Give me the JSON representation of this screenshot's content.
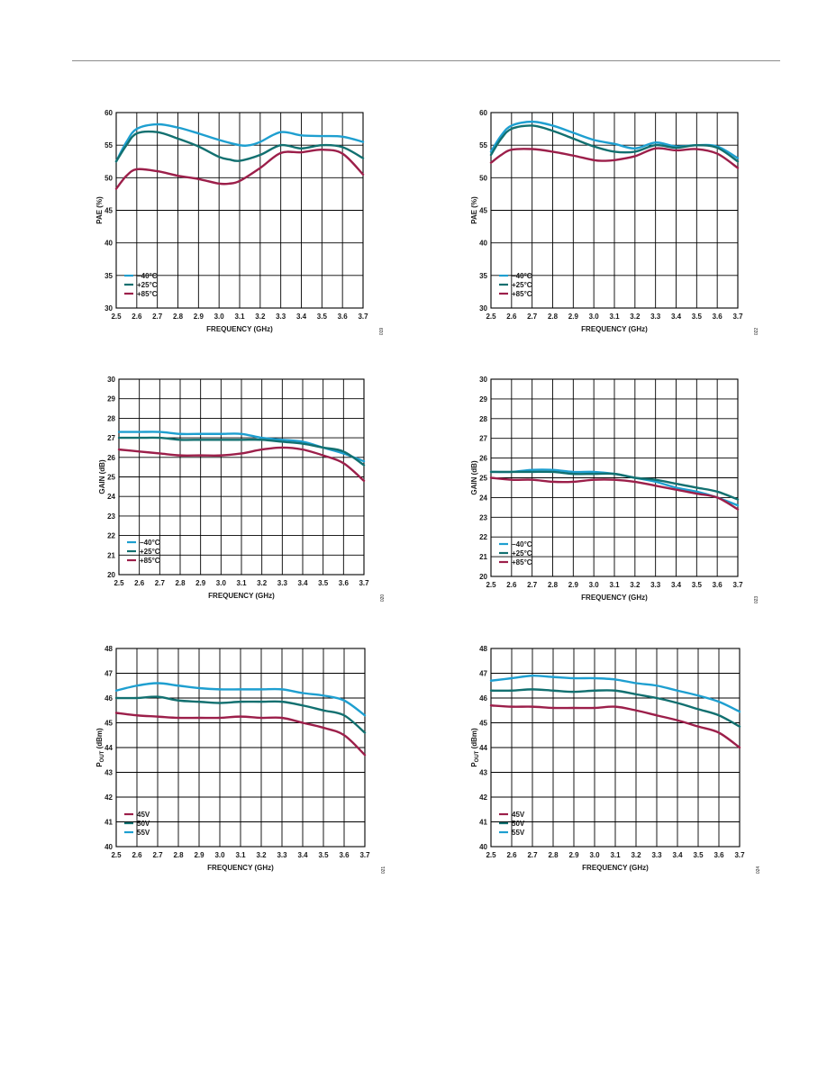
{
  "chart_data": [
    {
      "type": "line",
      "xlabel": "FREQUENCY (GHz)",
      "ylabel": "PAE (%)",
      "figure_id": "019",
      "xlim": [
        2.5,
        3.7
      ],
      "ylim": [
        30,
        60
      ],
      "x_ticks": [
        "2.5",
        "2.6",
        "2.7",
        "2.8",
        "2.9",
        "3.0",
        "3.1",
        "3.2",
        "3.3",
        "3.4",
        "3.5",
        "3.6",
        "3.7"
      ],
      "y_ticks": [
        "30",
        "35",
        "40",
        "45",
        "50",
        "55",
        "60"
      ],
      "legend_position": "bottom-left",
      "series": [
        {
          "name": "−40°C",
          "color": "#1e9fd0",
          "x": [
            2.5,
            2.55,
            2.6,
            2.7,
            2.8,
            2.9,
            3.0,
            3.1,
            3.15,
            3.2,
            3.3,
            3.4,
            3.5,
            3.6,
            3.7
          ],
          "y": [
            52.5,
            55.5,
            57.5,
            58.2,
            57.7,
            56.8,
            55.8,
            55.0,
            55.0,
            55.5,
            57.0,
            56.5,
            56.4,
            56.3,
            55.5
          ]
        },
        {
          "name": "+25°C",
          "color": "#127070",
          "x": [
            2.5,
            2.55,
            2.6,
            2.7,
            2.8,
            2.9,
            3.0,
            3.05,
            3.1,
            3.2,
            3.3,
            3.4,
            3.5,
            3.6,
            3.7
          ],
          "y": [
            52.5,
            55.0,
            56.8,
            57.0,
            56.0,
            54.8,
            53.2,
            52.8,
            52.6,
            53.5,
            55.0,
            54.5,
            55.0,
            54.7,
            53.0
          ]
        },
        {
          "name": "+85°C",
          "color": "#9c1f4a",
          "x": [
            2.5,
            2.55,
            2.6,
            2.7,
            2.8,
            2.9,
            3.0,
            3.05,
            3.1,
            3.2,
            3.3,
            3.4,
            3.5,
            3.6,
            3.7
          ],
          "y": [
            48.3,
            50.3,
            51.3,
            51.0,
            50.3,
            49.8,
            49.1,
            49.1,
            49.5,
            51.5,
            53.8,
            53.9,
            54.3,
            53.7,
            50.5
          ]
        }
      ]
    },
    {
      "type": "line",
      "xlabel": "FREQUENCY (GHz)",
      "ylabel": "PAE (%)",
      "figure_id": "022",
      "xlim": [
        2.5,
        3.7
      ],
      "ylim": [
        30,
        60
      ],
      "x_ticks": [
        "2.5",
        "2.6",
        "2.7",
        "2.8",
        "2.9",
        "3.0",
        "3.1",
        "3.2",
        "3.3",
        "3.4",
        "3.5",
        "3.6",
        "3.7"
      ],
      "y_ticks": [
        "30",
        "35",
        "40",
        "45",
        "50",
        "55",
        "60"
      ],
      "legend_position": "bottom-left",
      "series": [
        {
          "name": "−40°C",
          "color": "#1e9fd0",
          "x": [
            2.5,
            2.55,
            2.6,
            2.7,
            2.8,
            2.9,
            3.0,
            3.1,
            3.2,
            3.3,
            3.4,
            3.5,
            3.6,
            3.7
          ],
          "y": [
            54.0,
            56.5,
            58.0,
            58.6,
            58.0,
            56.9,
            55.8,
            55.2,
            54.5,
            55.4,
            54.8,
            55.0,
            54.8,
            53.0
          ]
        },
        {
          "name": "+25°C",
          "color": "#127070",
          "x": [
            2.5,
            2.55,
            2.6,
            2.7,
            2.8,
            2.9,
            3.0,
            3.1,
            3.2,
            3.3,
            3.4,
            3.5,
            3.6,
            3.7
          ],
          "y": [
            53.5,
            56.0,
            57.5,
            58.0,
            57.2,
            56.0,
            54.8,
            54.0,
            54.0,
            55.0,
            54.6,
            55.0,
            54.6,
            52.5
          ]
        },
        {
          "name": "+85°C",
          "color": "#9c1f4a",
          "x": [
            2.5,
            2.55,
            2.6,
            2.7,
            2.8,
            2.9,
            3.0,
            3.05,
            3.1,
            3.2,
            3.3,
            3.4,
            3.5,
            3.6,
            3.7
          ],
          "y": [
            52.3,
            53.5,
            54.3,
            54.4,
            54.0,
            53.4,
            52.7,
            52.6,
            52.7,
            53.3,
            54.5,
            54.2,
            54.4,
            53.7,
            51.5
          ]
        }
      ]
    },
    {
      "type": "line",
      "xlabel": "FREQUENCY (GHz)",
      "ylabel": "GAIN (dB)",
      "figure_id": "020",
      "xlim": [
        2.5,
        3.7
      ],
      "ylim": [
        20,
        30
      ],
      "x_ticks": [
        "2.5",
        "2.6",
        "2.7",
        "2.8",
        "2.9",
        "3.0",
        "3.1",
        "3.2",
        "3.3",
        "3.4",
        "3.5",
        "3.6",
        "3.7"
      ],
      "y_ticks": [
        "20",
        "21",
        "22",
        "23",
        "24",
        "25",
        "26",
        "27",
        "28",
        "29",
        "30"
      ],
      "legend_position": "bottom-left",
      "series": [
        {
          "name": "−40°C",
          "color": "#1e9fd0",
          "x": [
            2.5,
            2.6,
            2.7,
            2.8,
            2.9,
            3.0,
            3.1,
            3.2,
            3.3,
            3.4,
            3.5,
            3.6,
            3.7
          ],
          "y": [
            27.3,
            27.3,
            27.3,
            27.2,
            27.2,
            27.2,
            27.2,
            27.0,
            26.9,
            26.8,
            26.5,
            26.2,
            25.8
          ]
        },
        {
          "name": "+25°C",
          "color": "#127070",
          "x": [
            2.5,
            2.6,
            2.7,
            2.8,
            2.9,
            3.0,
            3.1,
            3.2,
            3.3,
            3.4,
            3.5,
            3.6,
            3.7
          ],
          "y": [
            27.0,
            27.0,
            27.0,
            26.9,
            26.9,
            26.9,
            26.9,
            26.9,
            26.8,
            26.7,
            26.5,
            26.3,
            25.6
          ]
        },
        {
          "name": "+85°C",
          "color": "#9c1f4a",
          "x": [
            2.5,
            2.6,
            2.7,
            2.8,
            2.9,
            3.0,
            3.1,
            3.2,
            3.3,
            3.4,
            3.5,
            3.6,
            3.7
          ],
          "y": [
            26.4,
            26.3,
            26.2,
            26.1,
            26.1,
            26.1,
            26.2,
            26.4,
            26.5,
            26.4,
            26.1,
            25.7,
            24.8
          ]
        }
      ]
    },
    {
      "type": "line",
      "xlabel": "FREQUENCY (GHz)",
      "ylabel": "GAIN (dB)",
      "figure_id": "023",
      "xlim": [
        2.5,
        3.7
      ],
      "ylim": [
        20,
        30
      ],
      "x_ticks": [
        "2.5",
        "2.6",
        "2.7",
        "2.8",
        "2.9",
        "3.0",
        "3.1",
        "3.2",
        "3.3",
        "3.4",
        "3.5",
        "3.6",
        "3.7"
      ],
      "y_ticks": [
        "20",
        "21",
        "22",
        "23",
        "24",
        "25",
        "26",
        "27",
        "28",
        "29",
        "30"
      ],
      "legend_position": "bottom-left",
      "series": [
        {
          "name": "−40°C",
          "color": "#1e9fd0",
          "x": [
            2.5,
            2.6,
            2.7,
            2.8,
            2.9,
            3.0,
            3.1,
            3.2,
            3.3,
            3.4,
            3.5,
            3.6,
            3.7
          ],
          "y": [
            25.3,
            25.3,
            25.4,
            25.4,
            25.3,
            25.3,
            25.2,
            25.0,
            24.8,
            24.5,
            24.3,
            24.0,
            23.6
          ]
        },
        {
          "name": "+25°C",
          "color": "#127070",
          "x": [
            2.5,
            2.6,
            2.7,
            2.8,
            2.9,
            3.0,
            3.1,
            3.2,
            3.3,
            3.4,
            3.5,
            3.6,
            3.7
          ],
          "y": [
            25.3,
            25.3,
            25.3,
            25.3,
            25.2,
            25.2,
            25.2,
            25.0,
            24.9,
            24.7,
            24.5,
            24.3,
            23.9
          ]
        },
        {
          "name": "+85°C",
          "color": "#9c1f4a",
          "x": [
            2.5,
            2.6,
            2.7,
            2.8,
            2.9,
            3.0,
            3.1,
            3.2,
            3.3,
            3.4,
            3.5,
            3.6,
            3.7
          ],
          "y": [
            25.0,
            24.9,
            24.9,
            24.8,
            24.8,
            24.9,
            24.9,
            24.8,
            24.6,
            24.4,
            24.2,
            24.0,
            23.4
          ]
        }
      ]
    },
    {
      "type": "line",
      "xlabel": "FREQUENCY (GHz)",
      "ylabel_main": "P",
      "ylabel_sub": "OUT",
      "ylabel_unit": " (dBm)",
      "figure_id": "021",
      "xlim": [
        2.5,
        3.7
      ],
      "ylim": [
        40,
        48
      ],
      "x_ticks": [
        "2.5",
        "2.6",
        "2.7",
        "2.8",
        "2.9",
        "3.0",
        "3.1",
        "3.2",
        "3.3",
        "3.4",
        "3.5",
        "3.6",
        "3.7"
      ],
      "y_ticks": [
        "40",
        "41",
        "42",
        "43",
        "44",
        "45",
        "46",
        "47",
        "48"
      ],
      "legend_position": "bottom-left",
      "series": [
        {
          "name": "45V",
          "color": "#9c1f4a",
          "x": [
            2.5,
            2.6,
            2.7,
            2.8,
            2.9,
            3.0,
            3.1,
            3.2,
            3.3,
            3.4,
            3.5,
            3.6,
            3.7
          ],
          "y": [
            45.4,
            45.3,
            45.25,
            45.2,
            45.2,
            45.2,
            45.25,
            45.2,
            45.2,
            45.0,
            44.8,
            44.5,
            43.7
          ]
        },
        {
          "name": "50V",
          "color": "#127070",
          "x": [
            2.5,
            2.6,
            2.7,
            2.8,
            2.9,
            3.0,
            3.1,
            3.2,
            3.3,
            3.4,
            3.5,
            3.6,
            3.7
          ],
          "y": [
            46.0,
            46.0,
            46.05,
            45.9,
            45.85,
            45.8,
            45.85,
            45.85,
            45.85,
            45.7,
            45.5,
            45.3,
            44.6
          ]
        },
        {
          "name": "55V",
          "color": "#1e9fd0",
          "x": [
            2.5,
            2.6,
            2.7,
            2.8,
            2.9,
            3.0,
            3.1,
            3.2,
            3.3,
            3.4,
            3.5,
            3.6,
            3.7
          ],
          "y": [
            46.3,
            46.5,
            46.6,
            46.5,
            46.4,
            46.35,
            46.35,
            46.35,
            46.35,
            46.2,
            46.1,
            45.9,
            45.3
          ]
        }
      ]
    },
    {
      "type": "line",
      "xlabel": "FREQUENCY (GHz)",
      "ylabel_main": "P",
      "ylabel_sub": "OUT",
      "ylabel_unit": " (dBm)",
      "figure_id": "024",
      "xlim": [
        2.5,
        3.7
      ],
      "ylim": [
        40,
        48
      ],
      "x_ticks": [
        "2.5",
        "2.6",
        "2.7",
        "2.8",
        "2.9",
        "3.0",
        "3.1",
        "3.2",
        "3.3",
        "3.4",
        "3.5",
        "3.6",
        "3.7"
      ],
      "y_ticks": [
        "40",
        "41",
        "42",
        "43",
        "44",
        "45",
        "46",
        "47",
        "48"
      ],
      "legend_position": "bottom-left",
      "series": [
        {
          "name": "45V",
          "color": "#9c1f4a",
          "x": [
            2.5,
            2.6,
            2.7,
            2.8,
            2.9,
            3.0,
            3.1,
            3.2,
            3.3,
            3.4,
            3.5,
            3.6,
            3.7
          ],
          "y": [
            45.7,
            45.65,
            45.65,
            45.6,
            45.6,
            45.6,
            45.65,
            45.5,
            45.3,
            45.1,
            44.85,
            44.6,
            44.0
          ]
        },
        {
          "name": "50V",
          "color": "#127070",
          "x": [
            2.5,
            2.6,
            2.7,
            2.8,
            2.9,
            3.0,
            3.1,
            3.2,
            3.3,
            3.4,
            3.5,
            3.6,
            3.7
          ],
          "y": [
            46.3,
            46.3,
            46.35,
            46.3,
            46.25,
            46.3,
            46.3,
            46.15,
            46.0,
            45.8,
            45.55,
            45.3,
            44.85
          ]
        },
        {
          "name": "55V",
          "color": "#1e9fd0",
          "x": [
            2.5,
            2.6,
            2.7,
            2.8,
            2.9,
            3.0,
            3.1,
            3.2,
            3.3,
            3.4,
            3.5,
            3.6,
            3.7
          ],
          "y": [
            46.7,
            46.8,
            46.9,
            46.85,
            46.8,
            46.8,
            46.75,
            46.6,
            46.5,
            46.3,
            46.1,
            45.85,
            45.45
          ]
        }
      ]
    }
  ]
}
